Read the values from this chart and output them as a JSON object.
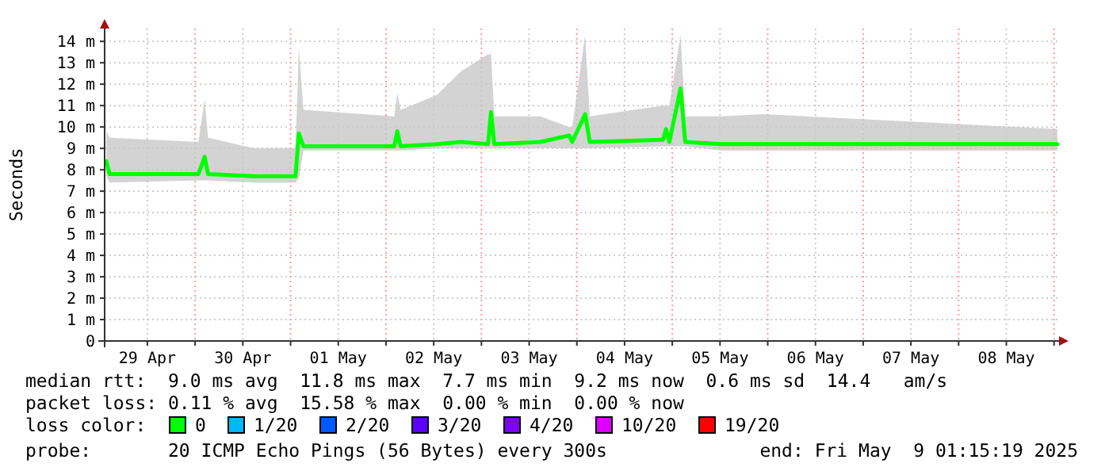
{
  "chart_data": {
    "type": "line",
    "ylabel": "Seconds",
    "legend_title": "loss color:",
    "legend": "bottom",
    "grid": true,
    "xlim": [
      "2025-04-29T01:15",
      "2025-05-09T01:15"
    ],
    "xticks": [
      {
        "value": "2025-04-29T12:00",
        "label": "29 Apr"
      },
      {
        "value": "2025-04-30T00:00",
        "label": null
      },
      {
        "value": "2025-04-30T12:00",
        "label": "30 Apr"
      },
      {
        "value": "2025-05-01T00:00",
        "label": null
      },
      {
        "value": "2025-05-01T12:00",
        "label": "01 May"
      },
      {
        "value": "2025-05-02T00:00",
        "label": null
      },
      {
        "value": "2025-05-02T12:00",
        "label": "02 May"
      },
      {
        "value": "2025-05-03T00:00",
        "label": null
      },
      {
        "value": "2025-05-03T12:00",
        "label": "03 May"
      },
      {
        "value": "2025-05-04T00:00",
        "label": null
      },
      {
        "value": "2025-05-04T12:00",
        "label": "04 May"
      },
      {
        "value": "2025-05-05T00:00",
        "label": null
      },
      {
        "value": "2025-05-05T12:00",
        "label": "05 May"
      },
      {
        "value": "2025-05-06T00:00",
        "label": null
      },
      {
        "value": "2025-05-06T12:00",
        "label": "06 May"
      },
      {
        "value": "2025-05-07T00:00",
        "label": null
      },
      {
        "value": "2025-05-07T12:00",
        "label": "07 May"
      },
      {
        "value": "2025-05-08T00:00",
        "label": null
      },
      {
        "value": "2025-05-08T12:00",
        "label": "08 May"
      },
      {
        "value": "2025-05-09T00:00",
        "label": null
      }
    ],
    "ylim": [
      0,
      14.6
    ],
    "yticks": [
      0,
      {
        "value": 1,
        "label": "1 m"
      },
      {
        "value": 2,
        "label": "2 m"
      },
      {
        "value": 3,
        "label": "3 m"
      },
      {
        "value": 4,
        "label": "4 m"
      },
      {
        "value": 5,
        "label": "5 m"
      },
      {
        "value": 6,
        "label": "6 m"
      },
      {
        "value": 7,
        "label": "7 m"
      },
      {
        "value": 8,
        "label": "8 m"
      },
      {
        "value": 9,
        "label": "9 m"
      },
      {
        "value": 10,
        "label": "10 m"
      },
      {
        "value": 11,
        "label": "11 m"
      },
      {
        "value": 12,
        "label": "12 m"
      },
      {
        "value": 13,
        "label": "13 m"
      },
      {
        "value": 14,
        "label": "14 m"
      }
    ],
    "x": [
      "2025-04-29T01:40",
      "2025-04-29T02:30",
      "2025-04-30T00:50",
      "2025-04-30T02:25",
      "2025-04-30T03:15",
      "2025-04-30T14:50",
      "2025-05-01T01:15",
      "2025-05-01T02:05",
      "2025-05-01T03:15",
      "2025-05-02T02:05",
      "2025-05-02T02:50",
      "2025-05-02T03:40",
      "2025-05-02T12:50",
      "2025-05-02T18:50",
      "2025-05-03T01:40",
      "2025-05-03T02:25",
      "2025-05-03T03:15",
      "2025-05-03T14:50",
      "2025-05-03T22:05",
      "2025-05-03T22:50",
      "2025-05-04T02:05",
      "2025-05-04T03:15",
      "2025-05-04T21:40",
      "2025-05-04T22:25",
      "2025-05-04T23:15",
      "2025-05-05T02:05",
      "2025-05-05T03:15",
      "2025-05-05T12:05",
      "2025-05-05T22:50",
      "2025-05-07T06:50",
      "2025-05-09T00:50"
    ],
    "series": [
      {
        "name": "0",
        "color": "#00ff00",
        "values": [
          8.4,
          7.8,
          7.8,
          8.6,
          7.8,
          7.7,
          7.7,
          9.7,
          9.1,
          9.1,
          9.8,
          9.1,
          9.2,
          9.3,
          9.2,
          10.7,
          9.2,
          9.3,
          9.6,
          9.3,
          10.6,
          9.3,
          9.4,
          9.9,
          9.3,
          11.8,
          9.3,
          9.2,
          9.2,
          9.2,
          9.2
        ],
        "lower": [
          7.7,
          7.4,
          7.5,
          7.5,
          7.5,
          7.4,
          7.4,
          7.6,
          8.9,
          8.9,
          8.9,
          8.9,
          9.0,
          9.0,
          9.0,
          9.0,
          9.0,
          9.0,
          9.0,
          9.0,
          9.0,
          9.0,
          9.1,
          9.1,
          9.1,
          9.1,
          9.1,
          8.9,
          8.9,
          8.9,
          8.9
        ],
        "upper": [
          9.8,
          9.5,
          9.3,
          11.3,
          9.5,
          9.0,
          9.0,
          13.7,
          10.8,
          10.5,
          11.6,
          10.8,
          11.5,
          12.6,
          13.4,
          13.4,
          10.5,
          10.5,
          10.0,
          10.0,
          14.3,
          10.5,
          11.0,
          11.0,
          11.0,
          14.3,
          10.5,
          10.5,
          10.6,
          10.3,
          9.9
        ]
      },
      {
        "name": "1/20",
        "color": "#00b8ff",
        "values": [
          null,
          null,
          null,
          null,
          null,
          null,
          null,
          null,
          null,
          null,
          null,
          null,
          null,
          null,
          null,
          null,
          null,
          null,
          null,
          null,
          null,
          null,
          null,
          null,
          null,
          null,
          null,
          null,
          null,
          null,
          null
        ]
      },
      {
        "name": "2/20",
        "color": "#0059ff",
        "values": [
          null,
          null,
          null,
          null,
          null,
          null,
          null,
          null,
          null,
          null,
          null,
          null,
          null,
          null,
          null,
          null,
          null,
          null,
          null,
          null,
          null,
          null,
          null,
          null,
          null,
          null,
          null,
          null,
          null,
          null,
          null
        ]
      },
      {
        "name": "3/20",
        "color": "#5e00ff",
        "values": [
          null,
          null,
          null,
          null,
          null,
          null,
          null,
          null,
          null,
          null,
          null,
          null,
          null,
          null,
          null,
          null,
          null,
          null,
          null,
          null,
          null,
          null,
          null,
          null,
          null,
          null,
          null,
          null,
          null,
          null,
          null
        ]
      },
      {
        "name": "4/20",
        "color": "#7e00ff",
        "values": [
          null,
          null,
          null,
          null,
          null,
          null,
          null,
          null,
          null,
          null,
          null,
          null,
          null,
          null,
          null,
          null,
          null,
          null,
          null,
          null,
          null,
          null,
          null,
          null,
          null,
          null,
          null,
          null,
          null,
          null,
          null
        ]
      },
      {
        "name": "10/20",
        "color": "#dd00ff",
        "values": [
          null,
          null,
          null,
          null,
          null,
          null,
          null,
          null,
          null,
          null,
          null,
          null,
          null,
          null,
          null,
          null,
          null,
          null,
          null,
          null,
          null,
          null,
          null,
          null,
          null,
          null,
          null,
          null,
          null,
          null,
          null
        ]
      },
      {
        "name": "19/20",
        "color": "#ff0000",
        "values": [
          null,
          null,
          null,
          null,
          null,
          null,
          null,
          null,
          null,
          null,
          null,
          null,
          null,
          null,
          null,
          null,
          null,
          null,
          null,
          null,
          null,
          null,
          null,
          null,
          null,
          null,
          null,
          null,
          null,
          null,
          null
        ]
      }
    ],
    "annotations": [
      "median rtt:  9.0 ms avg  11.8 ms max  7.7 ms min  9.2 ms now  0.6 ms sd  14.4   am/s",
      "packet loss: 0.11 % avg  15.58 % max  0.00 % min  0.00 % now",
      "probe:       20 ICMP Echo Pings (56 Bytes) every 300s",
      "end: Fri May  9 01:15:19 2025"
    ]
  }
}
